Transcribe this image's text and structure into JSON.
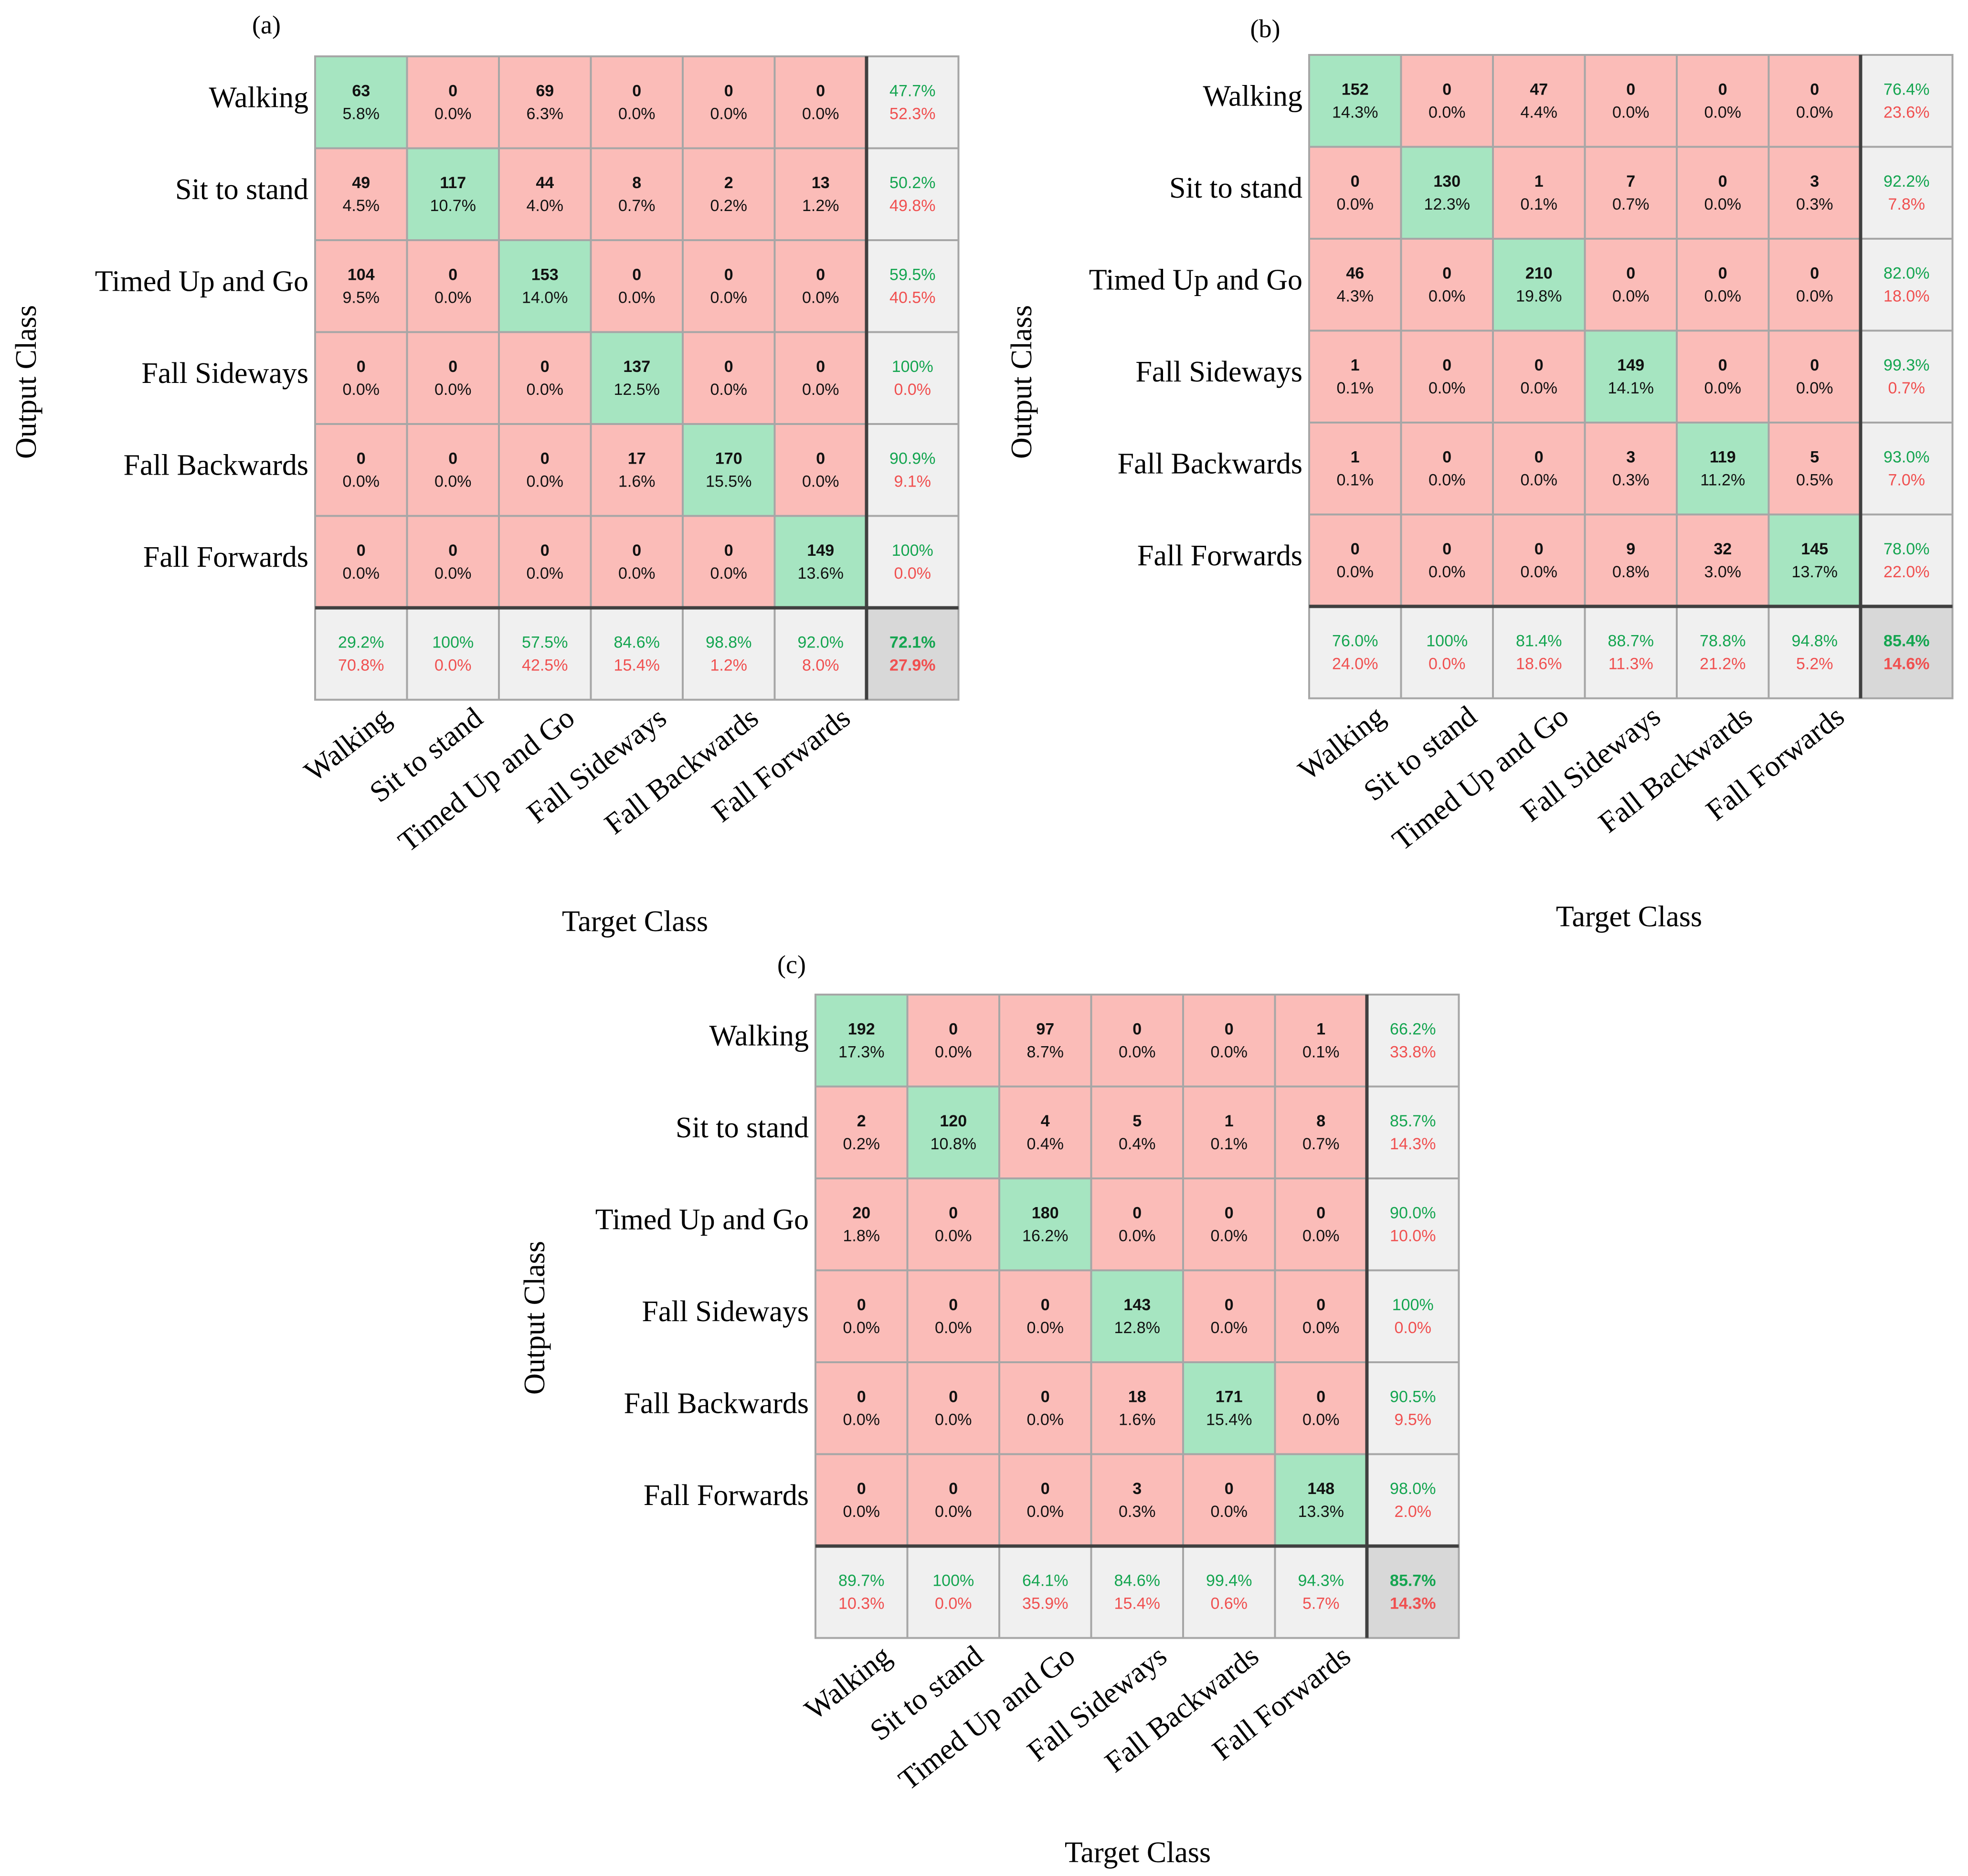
{
  "chart_data": [
    {
      "type": "heatmap",
      "panel_label": "(a)",
      "xlabel": "Target Class",
      "ylabel": "Output Class",
      "classes": [
        "Walking",
        "Sit to stand",
        "Timed Up and Go",
        "Fall Sideways",
        "Fall Backwards",
        "Fall Forwards"
      ],
      "counts": [
        [
          63,
          0,
          69,
          0,
          0,
          0
        ],
        [
          49,
          117,
          44,
          8,
          2,
          13
        ],
        [
          104,
          0,
          153,
          0,
          0,
          0
        ],
        [
          0,
          0,
          0,
          137,
          0,
          0
        ],
        [
          0,
          0,
          0,
          17,
          170,
          0
        ],
        [
          0,
          0,
          0,
          0,
          0,
          149
        ]
      ],
      "percents": [
        [
          "5.8%",
          "0.0%",
          "6.3%",
          "0.0%",
          "0.0%",
          "0.0%"
        ],
        [
          "4.5%",
          "10.7%",
          "4.0%",
          "0.7%",
          "0.2%",
          "1.2%"
        ],
        [
          "9.5%",
          "0.0%",
          "14.0%",
          "0.0%",
          "0.0%",
          "0.0%"
        ],
        [
          "0.0%",
          "0.0%",
          "0.0%",
          "12.5%",
          "0.0%",
          "0.0%"
        ],
        [
          "0.0%",
          "0.0%",
          "0.0%",
          "1.6%",
          "15.5%",
          "0.0%"
        ],
        [
          "0.0%",
          "0.0%",
          "0.0%",
          "0.0%",
          "0.0%",
          "13.6%"
        ]
      ],
      "row_summary": [
        [
          "47.7%",
          "52.3%"
        ],
        [
          "50.2%",
          "49.8%"
        ],
        [
          "59.5%",
          "40.5%"
        ],
        [
          "100%",
          "0.0%"
        ],
        [
          "90.9%",
          "9.1%"
        ],
        [
          "100%",
          "0.0%"
        ]
      ],
      "col_summary": [
        [
          "29.2%",
          "70.8%"
        ],
        [
          "100%",
          "0.0%"
        ],
        [
          "57.5%",
          "42.5%"
        ],
        [
          "84.6%",
          "15.4%"
        ],
        [
          "98.8%",
          "1.2%"
        ],
        [
          "92.0%",
          "8.0%"
        ]
      ],
      "overall": [
        "72.1%",
        "27.9%"
      ]
    },
    {
      "type": "heatmap",
      "panel_label": "(b)",
      "xlabel": "Target Class",
      "ylabel": "Output Class",
      "classes": [
        "Walking",
        "Sit to stand",
        "Timed Up and Go",
        "Fall Sideways",
        "Fall Backwards",
        "Fall Forwards"
      ],
      "counts": [
        [
          152,
          0,
          47,
          0,
          0,
          0
        ],
        [
          0,
          130,
          1,
          7,
          0,
          3
        ],
        [
          46,
          0,
          210,
          0,
          0,
          0
        ],
        [
          1,
          0,
          0,
          149,
          0,
          0
        ],
        [
          1,
          0,
          0,
          3,
          119,
          5
        ],
        [
          0,
          0,
          0,
          9,
          32,
          145
        ]
      ],
      "percents": [
        [
          "14.3%",
          "0.0%",
          "4.4%",
          "0.0%",
          "0.0%",
          "0.0%"
        ],
        [
          "0.0%",
          "12.3%",
          "0.1%",
          "0.7%",
          "0.0%",
          "0.3%"
        ],
        [
          "4.3%",
          "0.0%",
          "19.8%",
          "0.0%",
          "0.0%",
          "0.0%"
        ],
        [
          "0.1%",
          "0.0%",
          "0.0%",
          "14.1%",
          "0.0%",
          "0.0%"
        ],
        [
          "0.1%",
          "0.0%",
          "0.0%",
          "0.3%",
          "11.2%",
          "0.5%"
        ],
        [
          "0.0%",
          "0.0%",
          "0.0%",
          "0.8%",
          "3.0%",
          "13.7%"
        ]
      ],
      "row_summary": [
        [
          "76.4%",
          "23.6%"
        ],
        [
          "92.2%",
          "7.8%"
        ],
        [
          "82.0%",
          "18.0%"
        ],
        [
          "99.3%",
          "0.7%"
        ],
        [
          "93.0%",
          "7.0%"
        ],
        [
          "78.0%",
          "22.0%"
        ]
      ],
      "col_summary": [
        [
          "76.0%",
          "24.0%"
        ],
        [
          "100%",
          "0.0%"
        ],
        [
          "81.4%",
          "18.6%"
        ],
        [
          "88.7%",
          "11.3%"
        ],
        [
          "78.8%",
          "21.2%"
        ],
        [
          "94.8%",
          "5.2%"
        ]
      ],
      "overall": [
        "85.4%",
        "14.6%"
      ]
    },
    {
      "type": "heatmap",
      "panel_label": "(c)",
      "xlabel": "Target Class",
      "ylabel": "Output Class",
      "classes": [
        "Walking",
        "Sit to stand",
        "Timed Up and Go",
        "Fall Sideways",
        "Fall Backwards",
        "Fall Forwards"
      ],
      "counts": [
        [
          192,
          0,
          97,
          0,
          0,
          1
        ],
        [
          2,
          120,
          4,
          5,
          1,
          8
        ],
        [
          20,
          0,
          180,
          0,
          0,
          0
        ],
        [
          0,
          0,
          0,
          143,
          0,
          0
        ],
        [
          0,
          0,
          0,
          18,
          171,
          0
        ],
        [
          0,
          0,
          0,
          3,
          0,
          148
        ]
      ],
      "percents": [
        [
          "17.3%",
          "0.0%",
          "8.7%",
          "0.0%",
          "0.0%",
          "0.1%"
        ],
        [
          "0.2%",
          "10.8%",
          "0.4%",
          "0.4%",
          "0.1%",
          "0.7%"
        ],
        [
          "1.8%",
          "0.0%",
          "16.2%",
          "0.0%",
          "0.0%",
          "0.0%"
        ],
        [
          "0.0%",
          "0.0%",
          "0.0%",
          "12.8%",
          "0.0%",
          "0.0%"
        ],
        [
          "0.0%",
          "0.0%",
          "0.0%",
          "1.6%",
          "15.4%",
          "0.0%"
        ],
        [
          "0.0%",
          "0.0%",
          "0.0%",
          "0.3%",
          "0.0%",
          "13.3%"
        ]
      ],
      "row_summary": [
        [
          "66.2%",
          "33.8%"
        ],
        [
          "85.7%",
          "14.3%"
        ],
        [
          "90.0%",
          "10.0%"
        ],
        [
          "100%",
          "0.0%"
        ],
        [
          "90.5%",
          "9.5%"
        ],
        [
          "98.0%",
          "2.0%"
        ]
      ],
      "col_summary": [
        [
          "89.7%",
          "10.3%"
        ],
        [
          "100%",
          "0.0%"
        ],
        [
          "64.1%",
          "35.9%"
        ],
        [
          "84.6%",
          "15.4%"
        ],
        [
          "99.4%",
          "0.6%"
        ],
        [
          "94.3%",
          "5.7%"
        ]
      ],
      "overall": [
        "85.7%",
        "14.3%"
      ]
    }
  ],
  "colors": {
    "correct_cell": "#a6e5c1",
    "error_cell": "#fbbcb8",
    "summary_cell": "#f0f0f0",
    "overall_cell": "#d8d8d8",
    "grid_line": "#a6a6a6",
    "separator_line": "#404040",
    "correct_text": "#14a550",
    "error_text": "#f05050",
    "value_text": "#111111"
  }
}
